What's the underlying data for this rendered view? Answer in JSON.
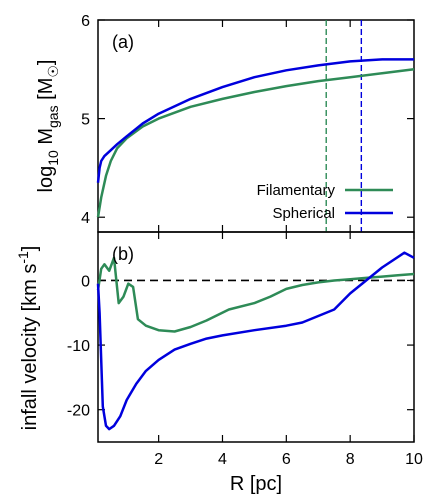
{
  "chart_data": [
    {
      "type": "line",
      "panel_label": "(a)",
      "ylabel_parts": {
        "log": "log",
        "log_sub": "10",
        "m": " M",
        "m_sub": "gas",
        "bracket_open": " [M",
        "sun": "☉",
        "bracket_close": "]"
      },
      "xlim": [
        0.1,
        10
      ],
      "ylim": [
        3.85,
        6
      ],
      "yticks": [
        "4",
        "5",
        "6"
      ],
      "yticks_values": [
        4,
        5,
        6
      ],
      "series": [
        {
          "name": "Filamentary",
          "color": "#2e8b57",
          "x": [
            0.1,
            0.2,
            0.35,
            0.5,
            0.7,
            1.0,
            1.5,
            2.0,
            3.0,
            4.0,
            5.0,
            6.0,
            7.0,
            8.0,
            9.0,
            10.0
          ],
          "y": [
            4.0,
            4.2,
            4.42,
            4.57,
            4.7,
            4.8,
            4.92,
            5.0,
            5.12,
            5.2,
            5.27,
            5.33,
            5.38,
            5.42,
            5.46,
            5.5
          ]
        },
        {
          "name": "Spherical",
          "color": "#0000dd",
          "x": [
            0.1,
            0.15,
            0.2,
            0.3,
            0.5,
            0.7,
            1.0,
            1.5,
            2.0,
            3.0,
            4.0,
            5.0,
            6.0,
            7.0,
            8.0,
            9.0,
            10.0
          ],
          "y": [
            4.35,
            4.5,
            4.57,
            4.62,
            4.68,
            4.74,
            4.82,
            4.95,
            5.05,
            5.2,
            5.32,
            5.42,
            5.49,
            5.54,
            5.58,
            5.6,
            5.6
          ]
        }
      ],
      "vlines": [
        {
          "x": 7.25,
          "color": "#2e8b57"
        },
        {
          "x": 8.35,
          "color": "#0000dd"
        }
      ],
      "legend": [
        {
          "label": "Filamentary",
          "color": "#2e8b57"
        },
        {
          "label": "Spherical",
          "color": "#0000dd"
        }
      ]
    },
    {
      "type": "line",
      "panel_label": "(b)",
      "ylabel": "infall velocity [km s",
      "ylabel_sup": "-1",
      "ylabel_close": "]",
      "xlabel": "R [pc]",
      "xlim": [
        0.1,
        10
      ],
      "ylim": [
        -25,
        7.5
      ],
      "xticks": [
        "2",
        "4",
        "6",
        "8",
        "10"
      ],
      "xticks_values": [
        2,
        4,
        6,
        8,
        10
      ],
      "yticks": [
        "0",
        "-10",
        "-20"
      ],
      "yticks_values": [
        0,
        -10,
        -20
      ],
      "zero_line": 0,
      "series": [
        {
          "name": "Filamentary",
          "color": "#2e8b57",
          "x": [
            0.1,
            0.2,
            0.3,
            0.45,
            0.6,
            0.75,
            0.9,
            1.05,
            1.2,
            1.35,
            1.6,
            2.0,
            2.5,
            3.0,
            3.5,
            4.2,
            5.0,
            5.5,
            6.0,
            6.5,
            7.0,
            7.5,
            8.0,
            8.5,
            9.0,
            9.5,
            10.0
          ],
          "y": [
            -1.5,
            1.8,
            2.5,
            1.5,
            3.5,
            -3.5,
            -2.5,
            -0.5,
            -1.0,
            -6.0,
            -7.0,
            -7.7,
            -7.9,
            -7.2,
            -6.2,
            -4.5,
            -3.5,
            -2.5,
            -1.3,
            -0.7,
            -0.3,
            0.0,
            0.2,
            0.4,
            0.6,
            0.8,
            1.0
          ]
        },
        {
          "name": "Spherical",
          "color": "#0000dd",
          "x": [
            0.1,
            0.15,
            0.25,
            0.35,
            0.45,
            0.6,
            0.8,
            1.0,
            1.3,
            1.6,
            2.0,
            2.5,
            3.0,
            3.5,
            4.0,
            5.0,
            6.0,
            6.5,
            7.5,
            8.0,
            8.5,
            9.0,
            9.7,
            10.0
          ],
          "y": [
            -0.5,
            -5.0,
            -19.5,
            -22.5,
            -23.0,
            -22.5,
            -21.0,
            -18.5,
            -16.0,
            -14.0,
            -12.3,
            -10.7,
            -9.8,
            -9.0,
            -8.5,
            -7.7,
            -7.0,
            -6.5,
            -4.5,
            -2.0,
            0.0,
            2.0,
            4.3,
            3.5
          ]
        }
      ]
    }
  ]
}
